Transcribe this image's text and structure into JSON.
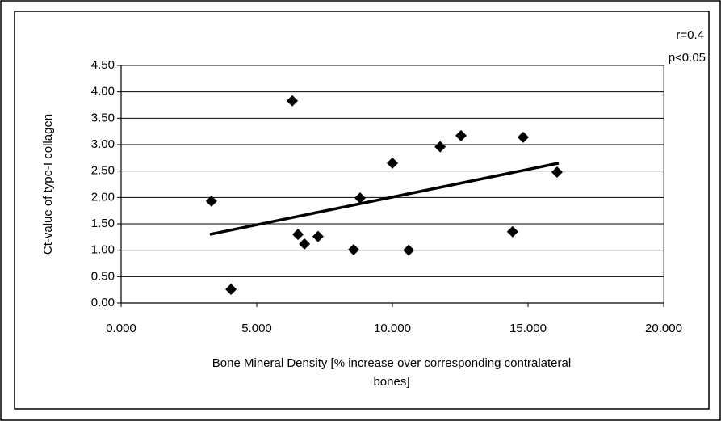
{
  "chart_data": {
    "type": "scatter",
    "xlabel": "Bone Mineral Density [% increase over corresponding contralateral bones]",
    "ylabel": "Ct-value of type-I collagen",
    "annotations": [
      "r=0.4",
      "p<0.05"
    ],
    "color": "#000000",
    "x": [
      3.33,
      4.05,
      6.31,
      6.52,
      6.76,
      7.26,
      8.57,
      8.81,
      10.0,
      10.6,
      11.76,
      12.53,
      14.43,
      14.82,
      16.07
    ],
    "values": [
      1.93,
      0.26,
      3.83,
      1.3,
      1.12,
      1.26,
      1.01,
      1.99,
      2.65,
      1.0,
      2.96,
      3.17,
      1.35,
      3.14,
      2.48
    ],
    "trendline": {
      "x": [
        3.27,
        16.13
      ],
      "y": [
        1.3,
        2.65
      ]
    },
    "xlim": [
      0,
      20
    ],
    "ylim": [
      0,
      4.5
    ],
    "xticks": [
      {
        "value": 0,
        "label": "0.000"
      },
      {
        "value": 5,
        "label": "5.000"
      },
      {
        "value": 10,
        "label": "10.000"
      },
      {
        "value": 15,
        "label": "15.000"
      },
      {
        "value": 20,
        "label": "20.000"
      }
    ],
    "yticks": [
      {
        "value": 0,
        "label": "0.00"
      },
      {
        "value": 0.5,
        "label": "0.50"
      },
      {
        "value": 1,
        "label": "1.00"
      },
      {
        "value": 1.5,
        "label": "1.50"
      },
      {
        "value": 2,
        "label": "2.00"
      },
      {
        "value": 2.5,
        "label": "2.50"
      },
      {
        "value": 3,
        "label": "3.00"
      },
      {
        "value": 3.5,
        "label": "3.50"
      },
      {
        "value": 4,
        "label": "4.00"
      },
      {
        "value": 4.5,
        "label": "4.50"
      }
    ],
    "grid": true
  }
}
